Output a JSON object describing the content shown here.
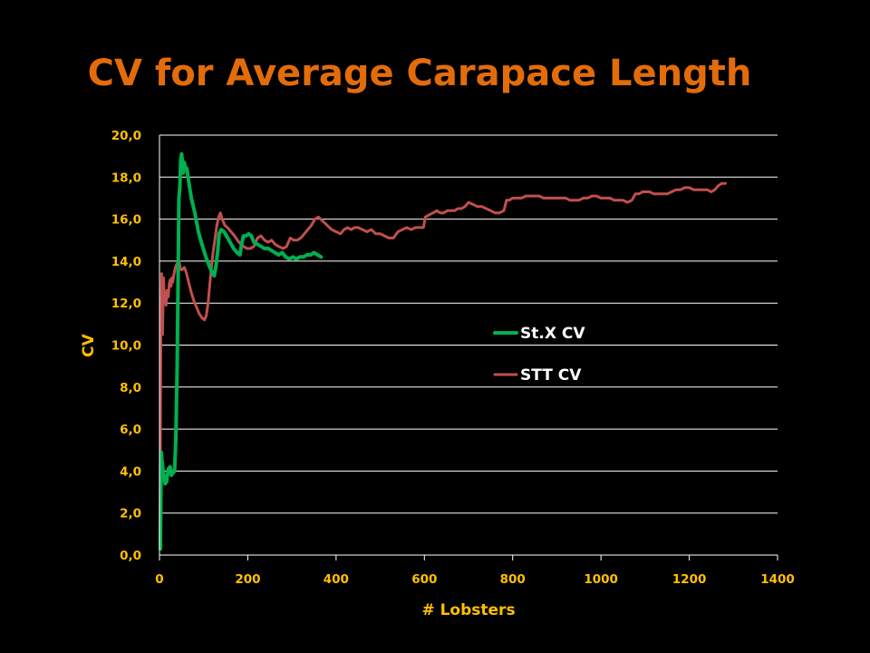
{
  "colors": {
    "background": "#000000",
    "title": "#e36c0a",
    "axis_text": "#ffc000",
    "gridline": "#ffffff",
    "legend_text": "#ffffff"
  },
  "chart_data": {
    "type": "line",
    "title": "CV for Average Carapace Length",
    "xlabel": "# Lobsters",
    "ylabel": "CV",
    "xlim": [
      0,
      1400
    ],
    "ylim": [
      0,
      20
    ],
    "x_ticks": [
      0,
      200,
      400,
      600,
      800,
      1000,
      1200,
      1400
    ],
    "x_tick_labels": [
      "0",
      "200",
      "400",
      "600",
      "800",
      "1000",
      "1200",
      "1400"
    ],
    "y_ticks": [
      0,
      2,
      4,
      6,
      8,
      10,
      12,
      14,
      16,
      18,
      20
    ],
    "y_tick_labels": [
      "0,0",
      "2,0",
      "4,0",
      "6,0",
      "8,0",
      "10,0",
      "12,0",
      "14,0",
      "16,0",
      "18,0",
      "20,0"
    ],
    "grid": "horizontal",
    "legend_position": "center-right",
    "series": [
      {
        "name": "St.X CV",
        "color": "#00b050",
        "points": [
          [
            2,
            0.3
          ],
          [
            4,
            4.9
          ],
          [
            7,
            4.2
          ],
          [
            10,
            3.7
          ],
          [
            13,
            3.4
          ],
          [
            16,
            3.5
          ],
          [
            20,
            4.1
          ],
          [
            24,
            4.2
          ],
          [
            27,
            3.8
          ],
          [
            30,
            3.9
          ],
          [
            34,
            4.0
          ],
          [
            37,
            5.5
          ],
          [
            40,
            9.0
          ],
          [
            42,
            13.0
          ],
          [
            44,
            17.0
          ],
          [
            46,
            17.5
          ],
          [
            48,
            18.8
          ],
          [
            50,
            19.1
          ],
          [
            52,
            18.7
          ],
          [
            54,
            18.2
          ],
          [
            56,
            18.7
          ],
          [
            58,
            18.5
          ],
          [
            62,
            18.4
          ],
          [
            66,
            17.8
          ],
          [
            72,
            17.0
          ],
          [
            80,
            16.3
          ],
          [
            88,
            15.4
          ],
          [
            96,
            14.8
          ],
          [
            105,
            14.2
          ],
          [
            112,
            13.8
          ],
          [
            118,
            13.5
          ],
          [
            124,
            13.3
          ],
          [
            128,
            13.8
          ],
          [
            132,
            14.5
          ],
          [
            135,
            15.3
          ],
          [
            140,
            15.5
          ],
          [
            146,
            15.4
          ],
          [
            152,
            15.2
          ],
          [
            160,
            14.9
          ],
          [
            168,
            14.6
          ],
          [
            176,
            14.4
          ],
          [
            182,
            14.3
          ],
          [
            186,
            14.8
          ],
          [
            190,
            15.2
          ],
          [
            196,
            15.2
          ],
          [
            202,
            15.3
          ],
          [
            208,
            15.2
          ],
          [
            214,
            14.9
          ],
          [
            222,
            14.8
          ],
          [
            230,
            14.7
          ],
          [
            238,
            14.6
          ],
          [
            246,
            14.6
          ],
          [
            254,
            14.5
          ],
          [
            262,
            14.4
          ],
          [
            270,
            14.3
          ],
          [
            278,
            14.4
          ],
          [
            286,
            14.2
          ],
          [
            294,
            14.1
          ],
          [
            302,
            14.2
          ],
          [
            310,
            14.1
          ],
          [
            318,
            14.2
          ],
          [
            326,
            14.2
          ],
          [
            334,
            14.3
          ],
          [
            342,
            14.3
          ],
          [
            350,
            14.4
          ],
          [
            358,
            14.3
          ],
          [
            366,
            14.2
          ]
        ]
      },
      {
        "name": "STT CV",
        "color": "#c0504d",
        "points": [
          [
            1,
            0.3
          ],
          [
            3,
            10.5
          ],
          [
            5,
            13.4
          ],
          [
            7,
            10.5
          ],
          [
            9,
            13.2
          ],
          [
            11,
            12.3
          ],
          [
            13,
            12.1
          ],
          [
            15,
            11.9
          ],
          [
            17,
            12.6
          ],
          [
            20,
            12.3
          ],
          [
            22,
            12.9
          ],
          [
            24,
            13.1
          ],
          [
            26,
            12.8
          ],
          [
            28,
            13.2
          ],
          [
            30,
            13.0
          ],
          [
            33,
            13.4
          ],
          [
            36,
            13.7
          ],
          [
            40,
            13.9
          ],
          [
            44,
            14.0
          ],
          [
            48,
            13.6
          ],
          [
            52,
            13.6
          ],
          [
            56,
            13.7
          ],
          [
            60,
            13.5
          ],
          [
            66,
            13.0
          ],
          [
            72,
            12.5
          ],
          [
            78,
            12.1
          ],
          [
            84,
            11.8
          ],
          [
            90,
            11.5
          ],
          [
            96,
            11.3
          ],
          [
            102,
            11.2
          ],
          [
            106,
            11.4
          ],
          [
            110,
            12.0
          ],
          [
            114,
            12.9
          ],
          [
            118,
            13.8
          ],
          [
            122,
            14.5
          ],
          [
            126,
            15.1
          ],
          [
            130,
            15.7
          ],
          [
            134,
            16.1
          ],
          [
            138,
            16.3
          ],
          [
            142,
            16.0
          ],
          [
            148,
            15.7
          ],
          [
            154,
            15.6
          ],
          [
            162,
            15.4
          ],
          [
            170,
            15.2
          ],
          [
            180,
            14.9
          ],
          [
            190,
            14.7
          ],
          [
            198,
            14.6
          ],
          [
            206,
            14.6
          ],
          [
            214,
            14.7
          ],
          [
            222,
            15.1
          ],
          [
            230,
            15.2
          ],
          [
            238,
            15.0
          ],
          [
            246,
            14.9
          ],
          [
            254,
            15.0
          ],
          [
            262,
            14.8
          ],
          [
            270,
            14.7
          ],
          [
            280,
            14.6
          ],
          [
            288,
            14.7
          ],
          [
            296,
            15.1
          ],
          [
            304,
            15.0
          ],
          [
            312,
            15.0
          ],
          [
            320,
            15.1
          ],
          [
            328,
            15.3
          ],
          [
            336,
            15.5
          ],
          [
            344,
            15.7
          ],
          [
            352,
            16.0
          ],
          [
            360,
            16.1
          ],
          [
            370,
            15.9
          ],
          [
            380,
            15.7
          ],
          [
            390,
            15.5
          ],
          [
            400,
            15.4
          ],
          [
            410,
            15.3
          ],
          [
            418,
            15.5
          ],
          [
            426,
            15.6
          ],
          [
            434,
            15.5
          ],
          [
            442,
            15.6
          ],
          [
            450,
            15.6
          ],
          [
            460,
            15.5
          ],
          [
            470,
            15.4
          ],
          [
            480,
            15.5
          ],
          [
            490,
            15.3
          ],
          [
            500,
            15.3
          ],
          [
            510,
            15.2
          ],
          [
            520,
            15.1
          ],
          [
            530,
            15.1
          ],
          [
            540,
            15.4
          ],
          [
            550,
            15.5
          ],
          [
            560,
            15.6
          ],
          [
            570,
            15.5
          ],
          [
            580,
            15.6
          ],
          [
            590,
            15.6
          ],
          [
            598,
            15.6
          ],
          [
            602,
            16.1
          ],
          [
            610,
            16.2
          ],
          [
            620,
            16.3
          ],
          [
            628,
            16.4
          ],
          [
            636,
            16.3
          ],
          [
            644,
            16.3
          ],
          [
            652,
            16.4
          ],
          [
            660,
            16.4
          ],
          [
            668,
            16.4
          ],
          [
            676,
            16.5
          ],
          [
            684,
            16.5
          ],
          [
            692,
            16.6
          ],
          [
            700,
            16.8
          ],
          [
            710,
            16.7
          ],
          [
            720,
            16.6
          ],
          [
            730,
            16.6
          ],
          [
            740,
            16.5
          ],
          [
            750,
            16.4
          ],
          [
            760,
            16.3
          ],
          [
            770,
            16.3
          ],
          [
            780,
            16.4
          ],
          [
            786,
            16.9
          ],
          [
            792,
            16.9
          ],
          [
            800,
            17.0
          ],
          [
            810,
            17.0
          ],
          [
            820,
            17.0
          ],
          [
            830,
            17.1
          ],
          [
            840,
            17.1
          ],
          [
            850,
            17.1
          ],
          [
            860,
            17.1
          ],
          [
            870,
            17.0
          ],
          [
            880,
            17.0
          ],
          [
            890,
            17.0
          ],
          [
            900,
            17.0
          ],
          [
            910,
            17.0
          ],
          [
            920,
            17.0
          ],
          [
            930,
            16.9
          ],
          [
            940,
            16.9
          ],
          [
            950,
            16.9
          ],
          [
            960,
            17.0
          ],
          [
            970,
            17.0
          ],
          [
            980,
            17.1
          ],
          [
            990,
            17.1
          ],
          [
            1000,
            17.0
          ],
          [
            1010,
            17.0
          ],
          [
            1020,
            17.0
          ],
          [
            1030,
            16.9
          ],
          [
            1040,
            16.9
          ],
          [
            1050,
            16.9
          ],
          [
            1060,
            16.8
          ],
          [
            1070,
            16.9
          ],
          [
            1078,
            17.2
          ],
          [
            1086,
            17.2
          ],
          [
            1094,
            17.3
          ],
          [
            1102,
            17.3
          ],
          [
            1110,
            17.3
          ],
          [
            1120,
            17.2
          ],
          [
            1130,
            17.2
          ],
          [
            1140,
            17.2
          ],
          [
            1150,
            17.2
          ],
          [
            1160,
            17.3
          ],
          [
            1170,
            17.4
          ],
          [
            1180,
            17.4
          ],
          [
            1190,
            17.5
          ],
          [
            1200,
            17.5
          ],
          [
            1210,
            17.4
          ],
          [
            1220,
            17.4
          ],
          [
            1230,
            17.4
          ],
          [
            1240,
            17.4
          ],
          [
            1250,
            17.3
          ],
          [
            1258,
            17.4
          ],
          [
            1266,
            17.6
          ],
          [
            1274,
            17.7
          ],
          [
            1282,
            17.7
          ]
        ]
      }
    ]
  }
}
